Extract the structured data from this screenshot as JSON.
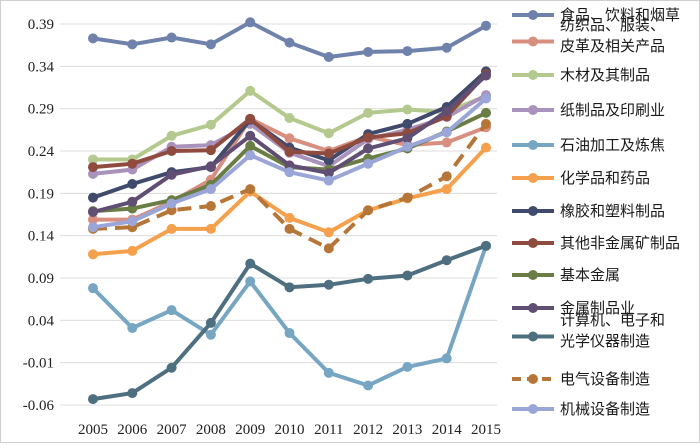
{
  "chart_data": {
    "type": "line",
    "title": "",
    "xlabel": "",
    "ylabel": "",
    "x": [
      2005,
      2006,
      2007,
      2008,
      2009,
      2010,
      2011,
      2012,
      2013,
      2014,
      2015
    ],
    "ylim": [
      -0.06,
      0.39
    ],
    "yticks": [
      "0.39",
      "0.34",
      "0.29",
      "0.24",
      "0.19",
      "0.14",
      "0.09",
      "0.04",
      "-0.01",
      "-0.06"
    ],
    "ytick_values": [
      0.39,
      0.34,
      0.29,
      0.24,
      0.19,
      0.14,
      0.09,
      0.04,
      -0.01,
      -0.06
    ],
    "grid": true,
    "legend_position": "right",
    "series": [
      {
        "name": "食品、饮料和烟草",
        "color": "#6f82ac",
        "dashed": false,
        "values": [
          0.373,
          0.366,
          0.374,
          0.366,
          0.392,
          0.368,
          0.351,
          0.357,
          0.358,
          0.362,
          0.388
        ]
      },
      {
        "name": "纺织品、服装、皮革及相关产品",
        "color": "#d98f80",
        "dashed": false,
        "values": [
          0.159,
          0.159,
          0.18,
          0.206,
          0.278,
          0.255,
          0.24,
          0.257,
          0.247,
          0.25,
          0.268
        ]
      },
      {
        "name": "木材及其制品",
        "color": "#b4c98d",
        "dashed": false,
        "values": [
          0.23,
          0.23,
          0.258,
          0.271,
          0.311,
          0.279,
          0.261,
          0.285,
          0.289,
          0.286,
          0.305
        ]
      },
      {
        "name": "纸制品及印刷业",
        "color": "#a993bd",
        "dashed": false,
        "values": [
          0.213,
          0.218,
          0.245,
          0.247,
          0.272,
          0.238,
          0.222,
          0.254,
          0.265,
          0.28,
          0.306
        ]
      },
      {
        "name": "石油加工及炼焦",
        "color": "#77a6c3",
        "dashed": false,
        "values": [
          0.078,
          0.031,
          0.052,
          0.023,
          0.086,
          0.025,
          -0.022,
          -0.037,
          -0.015,
          -0.005,
          0.128
        ]
      },
      {
        "name": "化学品和药品",
        "color": "#f4a04c",
        "dashed": false,
        "values": [
          0.118,
          0.122,
          0.148,
          0.148,
          0.192,
          0.161,
          0.144,
          0.17,
          0.184,
          0.195,
          0.244
        ]
      },
      {
        "name": "橡胶和塑料制品",
        "color": "#3f4a6c",
        "dashed": false,
        "values": [
          0.185,
          0.201,
          0.215,
          0.221,
          0.277,
          0.244,
          0.229,
          0.26,
          0.272,
          0.292,
          0.334
        ]
      },
      {
        "name": "其他非金属矿制品",
        "color": "#8e4b3e",
        "dashed": false,
        "values": [
          0.221,
          0.225,
          0.24,
          0.241,
          0.278,
          0.239,
          0.237,
          0.256,
          0.261,
          0.281,
          0.331
        ]
      },
      {
        "name": "基本金属",
        "color": "#6a7d45",
        "dashed": false,
        "values": [
          0.169,
          0.172,
          0.182,
          0.2,
          0.246,
          0.221,
          0.218,
          0.231,
          0.243,
          0.263,
          0.285
        ]
      },
      {
        "name": "金属制品业",
        "color": "#604e73",
        "dashed": false,
        "values": [
          0.168,
          0.18,
          0.212,
          0.222,
          0.258,
          0.223,
          0.214,
          0.243,
          0.255,
          0.287,
          0.329
        ]
      },
      {
        "name": "计算机、电子和光学仪器制造",
        "color": "#4d6f80",
        "dashed": false,
        "values": [
          -0.053,
          -0.046,
          -0.016,
          0.037,
          0.107,
          0.079,
          0.082,
          0.089,
          0.093,
          0.111,
          0.128
        ]
      },
      {
        "name": "电气设备制造",
        "color": "#b67638",
        "dashed": true,
        "values": [
          0.148,
          0.15,
          0.17,
          0.175,
          0.195,
          0.148,
          0.125,
          0.17,
          0.185,
          0.21,
          0.272
        ]
      },
      {
        "name": "机械设备制造",
        "color": "#9aa6d8",
        "dashed": false,
        "values": [
          0.15,
          0.157,
          0.178,
          0.195,
          0.235,
          0.215,
          0.205,
          0.225,
          0.245,
          0.262,
          0.302
        ]
      }
    ]
  }
}
